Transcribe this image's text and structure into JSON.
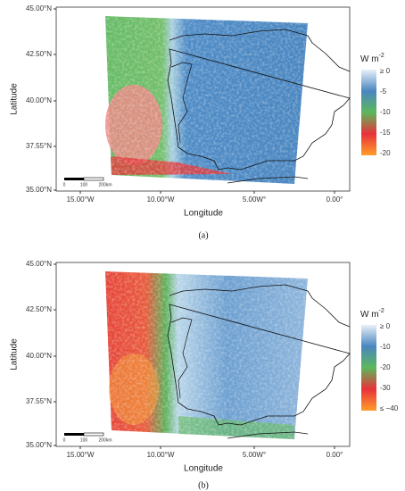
{
  "panels": [
    {
      "y_axis_title": "Latitude",
      "x_axis_title": "Longitude",
      "yticks": [
        "45.00°N",
        "42.50°N",
        "40.00°N",
        "37.55°N",
        "35.00°N"
      ],
      "xticks": [
        "15.00°W",
        "10.00°W",
        "5.00W°",
        "0.00°"
      ],
      "legend": {
        "title": "W m",
        "title_sup": "-2",
        "labels": [
          "≥ 0",
          "-5",
          "-10",
          "-15",
          "-20"
        ]
      },
      "scalebar": [
        "0",
        "100",
        "200km"
      ],
      "caption": "(a)"
    },
    {
      "y_axis_title": "Latitude",
      "x_axis_title": "Longitude",
      "yticks": [
        "45.00°N",
        "42.50°N",
        "40.00°N",
        "37.55°N",
        "35.00°N"
      ],
      "xticks": [
        "15.00°W",
        "10.00°W",
        "5.00W°",
        "0.00°"
      ],
      "legend": {
        "title": "W m",
        "title_sup": "-2",
        "labels": [
          "≥ 0",
          "-10",
          "-20",
          "-30",
          "≤ −40"
        ]
      },
      "scalebar": [
        "0",
        "100",
        "200km"
      ],
      "caption": "(b)"
    }
  ]
}
